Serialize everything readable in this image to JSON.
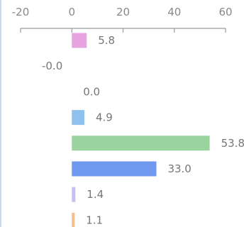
{
  "chart_data": {
    "type": "bar",
    "orientation": "horizontal",
    "x_axis_position": "top",
    "xlim": [
      -20,
      60
    ],
    "x_ticks": [
      -20,
      0,
      20,
      40,
      60
    ],
    "x_tick_labels": [
      "-20",
      "0",
      "20",
      "40",
      "60"
    ],
    "grid": false,
    "legend": "none",
    "values": [
      5.8,
      -0.0,
      0.0,
      4.9,
      53.8,
      33.0,
      1.4,
      1.1
    ],
    "value_labels": [
      "5.8",
      "-0.0",
      "0.0",
      "4.9",
      "53.8",
      "33.0",
      "1.4",
      "1.1"
    ],
    "bar_colors": [
      "#e7a3e0",
      "#c8c8c8",
      "#c8c8c8",
      "#8fc1ef",
      "#9bd39f",
      "#6f98ef",
      "#c5c0f3",
      "#f6be8e"
    ]
  },
  "colors": {
    "axis": "#9a9a9a",
    "left_edge_accent": "#c9d9ef"
  }
}
